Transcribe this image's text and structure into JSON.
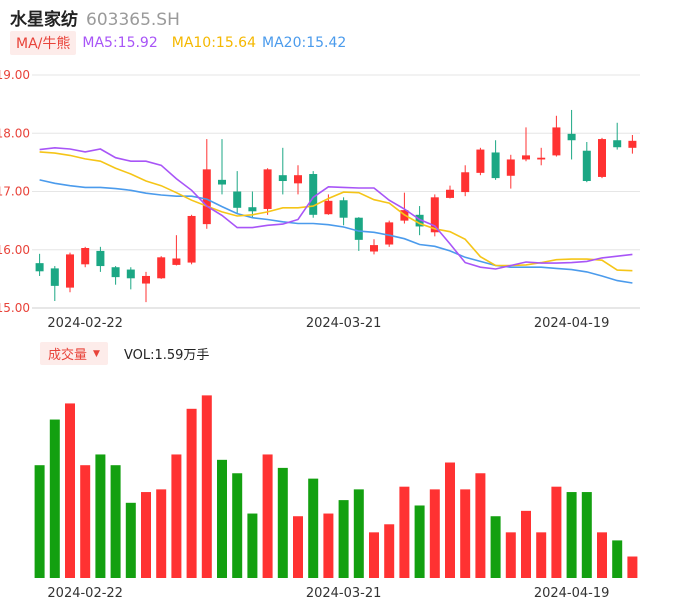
{
  "header": {
    "name": "水星家纺",
    "code": "603365.SH"
  },
  "ma_legend": {
    "button": "MA/牛熊",
    "ma5": "MA5:15.92",
    "ma10": "MA10:15.64",
    "ma20": "MA20:15.42"
  },
  "volume_legend": {
    "button": "成交量",
    "label": "VOL:1.59万手"
  },
  "colors": {
    "up": "#ff3232",
    "down": "#1ba784",
    "ma5": "#a855f7",
    "ma10": "#f5c518",
    "ma20": "#4b9bec",
    "vol_up": "#ff3232",
    "vol_down": "#13a010"
  },
  "chart_data": {
    "type": "candlestick",
    "y_ticks": [
      "19.00",
      "18.00",
      "17.00",
      "16.00",
      "15.00"
    ],
    "ylim": [
      15.0,
      19.0
    ],
    "x_ticks": [
      {
        "index": 3,
        "label": "2024-02-22"
      },
      {
        "index": 20,
        "label": "2024-03-21"
      },
      {
        "index": 35,
        "label": "2024-04-19"
      }
    ],
    "candles": [
      [
        15.77,
        15.63,
        15.93,
        15.55
      ],
      [
        15.68,
        15.38,
        15.72,
        15.12
      ],
      [
        15.35,
        15.92,
        15.95,
        15.27
      ],
      [
        15.75,
        16.03,
        16.05,
        15.7
      ],
      [
        15.98,
        15.72,
        16.05,
        15.62
      ],
      [
        15.7,
        15.53,
        15.72,
        15.4
      ],
      [
        15.66,
        15.51,
        15.7,
        15.32
      ],
      [
        15.42,
        15.55,
        15.62,
        15.1
      ],
      [
        15.51,
        15.87,
        15.89,
        15.5
      ],
      [
        15.74,
        15.85,
        16.25,
        15.73
      ],
      [
        15.78,
        16.58,
        16.6,
        15.75
      ],
      [
        16.44,
        17.38,
        17.9,
        16.36
      ],
      [
        17.2,
        17.12,
        17.9,
        16.95
      ],
      [
        17.0,
        16.72,
        17.35,
        16.62
      ],
      [
        16.73,
        16.66,
        17.0,
        16.55
      ],
      [
        16.7,
        17.38,
        17.4,
        16.6
      ],
      [
        17.28,
        17.18,
        17.75,
        16.95
      ],
      [
        17.14,
        17.28,
        17.45,
        16.95
      ],
      [
        17.3,
        16.6,
        17.35,
        16.55
      ],
      [
        16.61,
        16.84,
        16.95,
        16.6
      ],
      [
        16.85,
        16.55,
        16.9,
        16.42
      ],
      [
        16.55,
        16.17,
        16.56,
        15.98
      ],
      [
        15.97,
        16.08,
        16.18,
        15.92
      ],
      [
        16.09,
        16.47,
        16.5,
        16.05
      ],
      [
        16.5,
        16.68,
        16.98,
        16.45
      ],
      [
        16.6,
        16.4,
        16.75,
        16.25
      ],
      [
        16.3,
        16.9,
        16.95,
        16.23
      ],
      [
        16.89,
        17.03,
        17.1,
        16.88
      ],
      [
        16.99,
        17.33,
        17.45,
        16.92
      ],
      [
        17.32,
        17.72,
        17.75,
        17.28
      ],
      [
        17.67,
        17.23,
        17.88,
        17.2
      ],
      [
        17.27,
        17.55,
        17.63,
        17.05
      ],
      [
        17.55,
        17.62,
        18.1,
        17.52
      ],
      [
        17.55,
        17.58,
        17.75,
        17.45
      ],
      [
        17.62,
        18.1,
        18.3,
        17.6
      ],
      [
        17.99,
        17.88,
        18.4,
        17.55
      ],
      [
        17.7,
        17.18,
        17.85,
        17.16
      ],
      [
        17.25,
        17.9,
        17.92,
        17.23
      ],
      [
        17.88,
        17.76,
        18.18,
        17.72
      ],
      [
        17.75,
        17.87,
        17.97,
        17.65
      ]
    ],
    "ma5": [
      17.72,
      17.75,
      17.73,
      17.68,
      17.73,
      17.58,
      17.52,
      17.52,
      17.45,
      17.22,
      17.02,
      16.75,
      16.59,
      16.38,
      16.38,
      16.42,
      16.44,
      16.52,
      16.9,
      17.08,
      17.07,
      17.06,
      17.06,
      16.85,
      16.7,
      16.52,
      16.41,
      16.1,
      15.78,
      15.7,
      15.67,
      15.73,
      15.79,
      15.77,
      15.77,
      15.78,
      15.8,
      15.86,
      15.89,
      15.92
    ],
    "ma10": [
      17.68,
      17.66,
      17.62,
      17.56,
      17.52,
      17.4,
      17.3,
      17.18,
      17.1,
      16.98,
      16.85,
      16.75,
      16.65,
      16.58,
      16.6,
      16.65,
      16.72,
      16.72,
      16.75,
      16.88,
      16.99,
      16.98,
      16.86,
      16.8,
      16.6,
      16.45,
      16.36,
      16.31,
      16.18,
      15.88,
      15.73,
      15.73,
      15.74,
      15.78,
      15.83,
      15.84,
      15.84,
      15.82,
      15.65,
      15.64
    ],
    "ma20": [
      17.2,
      17.14,
      17.1,
      17.07,
      17.07,
      17.05,
      17.02,
      16.97,
      16.94,
      16.92,
      16.92,
      16.87,
      16.74,
      16.62,
      16.55,
      16.52,
      16.48,
      16.45,
      16.45,
      16.43,
      16.39,
      16.32,
      16.3,
      16.25,
      16.19,
      16.09,
      16.06,
      15.98,
      15.87,
      15.8,
      15.73,
      15.7,
      15.7,
      15.7,
      15.68,
      15.66,
      15.62,
      15.55,
      15.47,
      15.43
    ],
    "volumes": [
      4.2,
      5.9,
      6.5,
      4.2,
      4.6,
      4.2,
      2.8,
      3.2,
      3.3,
      4.6,
      6.3,
      6.8,
      4.4,
      3.9,
      2.4,
      4.6,
      4.1,
      2.3,
      3.7,
      2.4,
      2.9,
      3.3,
      1.7,
      2.0,
      3.4,
      2.7,
      3.3,
      4.3,
      3.3,
      3.9,
      2.3,
      1.7,
      2.5,
      1.7,
      3.4,
      3.2,
      3.2,
      1.7,
      1.4,
      0.8
    ],
    "vol_ymax": 7.0
  }
}
